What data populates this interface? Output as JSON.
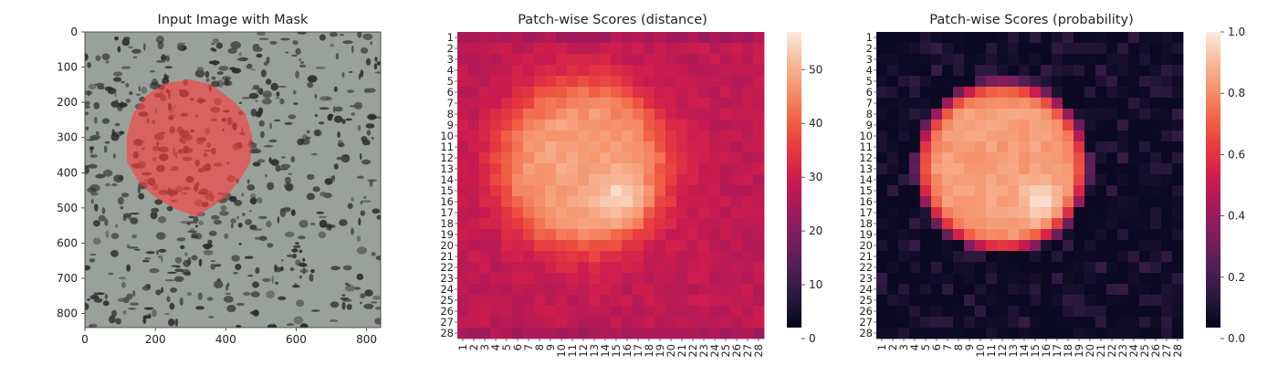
{
  "colors": {
    "mask": "#ff3b3b",
    "rocket_low": "#03051A",
    "rocket_high": "#FAEBDD",
    "texture_light": "#9aa19a",
    "texture_dark": "#2b2d2c"
  },
  "chart_data": [
    {
      "type": "image",
      "title": "Input Image with Mask",
      "xlim": [
        0,
        840
      ],
      "ylim": [
        840,
        0
      ],
      "xticks": [
        "0",
        "200",
        "400",
        "600",
        "800"
      ],
      "yticks": [
        "0",
        "100",
        "200",
        "300",
        "400",
        "500",
        "600",
        "700",
        "800"
      ],
      "mask_polygon": [
        [
          300,
          135
        ],
        [
          360,
          150
        ],
        [
          420,
          195
        ],
        [
          455,
          230
        ],
        [
          475,
          295
        ],
        [
          470,
          370
        ],
        [
          440,
          420
        ],
        [
          400,
          470
        ],
        [
          320,
          525
        ],
        [
          260,
          505
        ],
        [
          200,
          470
        ],
        [
          155,
          430
        ],
        [
          120,
          370
        ],
        [
          118,
          300
        ],
        [
          135,
          235
        ],
        [
          175,
          180
        ],
        [
          230,
          145
        ]
      ]
    },
    {
      "type": "heatmap",
      "title": "Patch-wise Scores (distance)",
      "rows": 28,
      "cols": 28,
      "labels": [
        "1",
        "2",
        "3",
        "4",
        "5",
        "6",
        "7",
        "8",
        "9",
        "10",
        "11",
        "12",
        "13",
        "14",
        "15",
        "16",
        "17",
        "18",
        "19",
        "20",
        "21",
        "22",
        "23",
        "24",
        "25",
        "26",
        "27",
        "28"
      ],
      "vmin": 0,
      "vmax": 57,
      "colorbar_ticks": [
        "0",
        "10",
        "20",
        "30",
        "40",
        "50"
      ],
      "blob_center": [
        11.8,
        11.0
      ],
      "blob_radius": 7.6,
      "hotspot_center": [
        15.0,
        14.5
      ],
      "base_value": 27,
      "blob_value": 48,
      "hotspot_peak": 57
    },
    {
      "type": "heatmap",
      "title": "Patch-wise Scores (probability)",
      "rows": 28,
      "cols": 28,
      "labels": [
        "1",
        "2",
        "3",
        "4",
        "5",
        "6",
        "7",
        "8",
        "9",
        "10",
        "11",
        "12",
        "13",
        "14",
        "15",
        "16",
        "17",
        "18",
        "19",
        "20",
        "21",
        "22",
        "23",
        "24",
        "25",
        "26",
        "27",
        "28"
      ],
      "vmin": 0.0,
      "vmax": 1.0,
      "colorbar_ticks": [
        "0.0",
        "0.2",
        "0.4",
        "0.6",
        "0.8",
        "1.0"
      ],
      "blob_center": [
        11.8,
        11.0
      ],
      "blob_radius": 7.6,
      "hotspot_center": [
        15.0,
        14.5
      ],
      "base_value": 0.02,
      "blob_value": 0.82,
      "hotspot_peak": 0.97
    }
  ]
}
